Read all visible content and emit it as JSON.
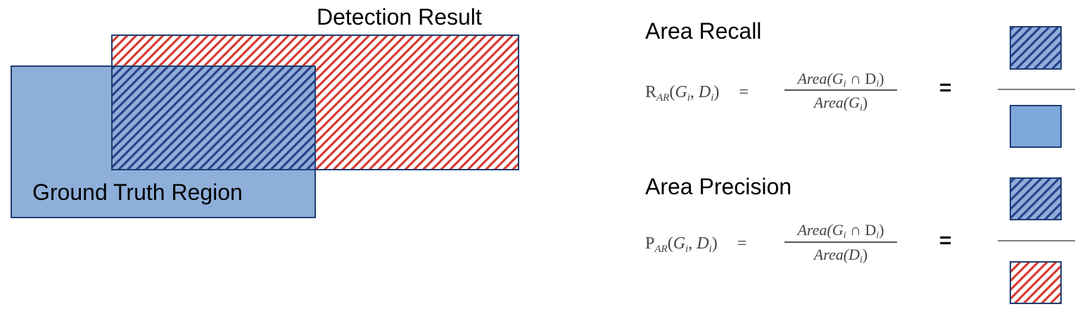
{
  "diagram": {
    "detection_label": "Detection Result",
    "ground_truth_label": "Ground Truth Region"
  },
  "recall": {
    "title": "Area Recall",
    "lhs_symbol": "R",
    "lhs_subscript": "AR",
    "lhs_args": "(G",
    "rhs_sign": "=",
    "numerator": "Area(G",
    "numerator_mid": " ∩ D",
    "denominator": "Area(G",
    "equals": "="
  },
  "precision": {
    "title": "Area Precision",
    "lhs_symbol": "P",
    "lhs_subscript": "AR",
    "numerator": "Area(G",
    "numerator_mid": " ∩ D",
    "denominator": "Area(D",
    "equals": "="
  },
  "colors": {
    "ground_truth_fill": "#8eafd9",
    "ground_truth_stroke": "#1f3f73",
    "detection_stroke": "#d63a2f",
    "overlap_hatch": "#2e3f8a",
    "legend_blue": "#7fa8da"
  }
}
